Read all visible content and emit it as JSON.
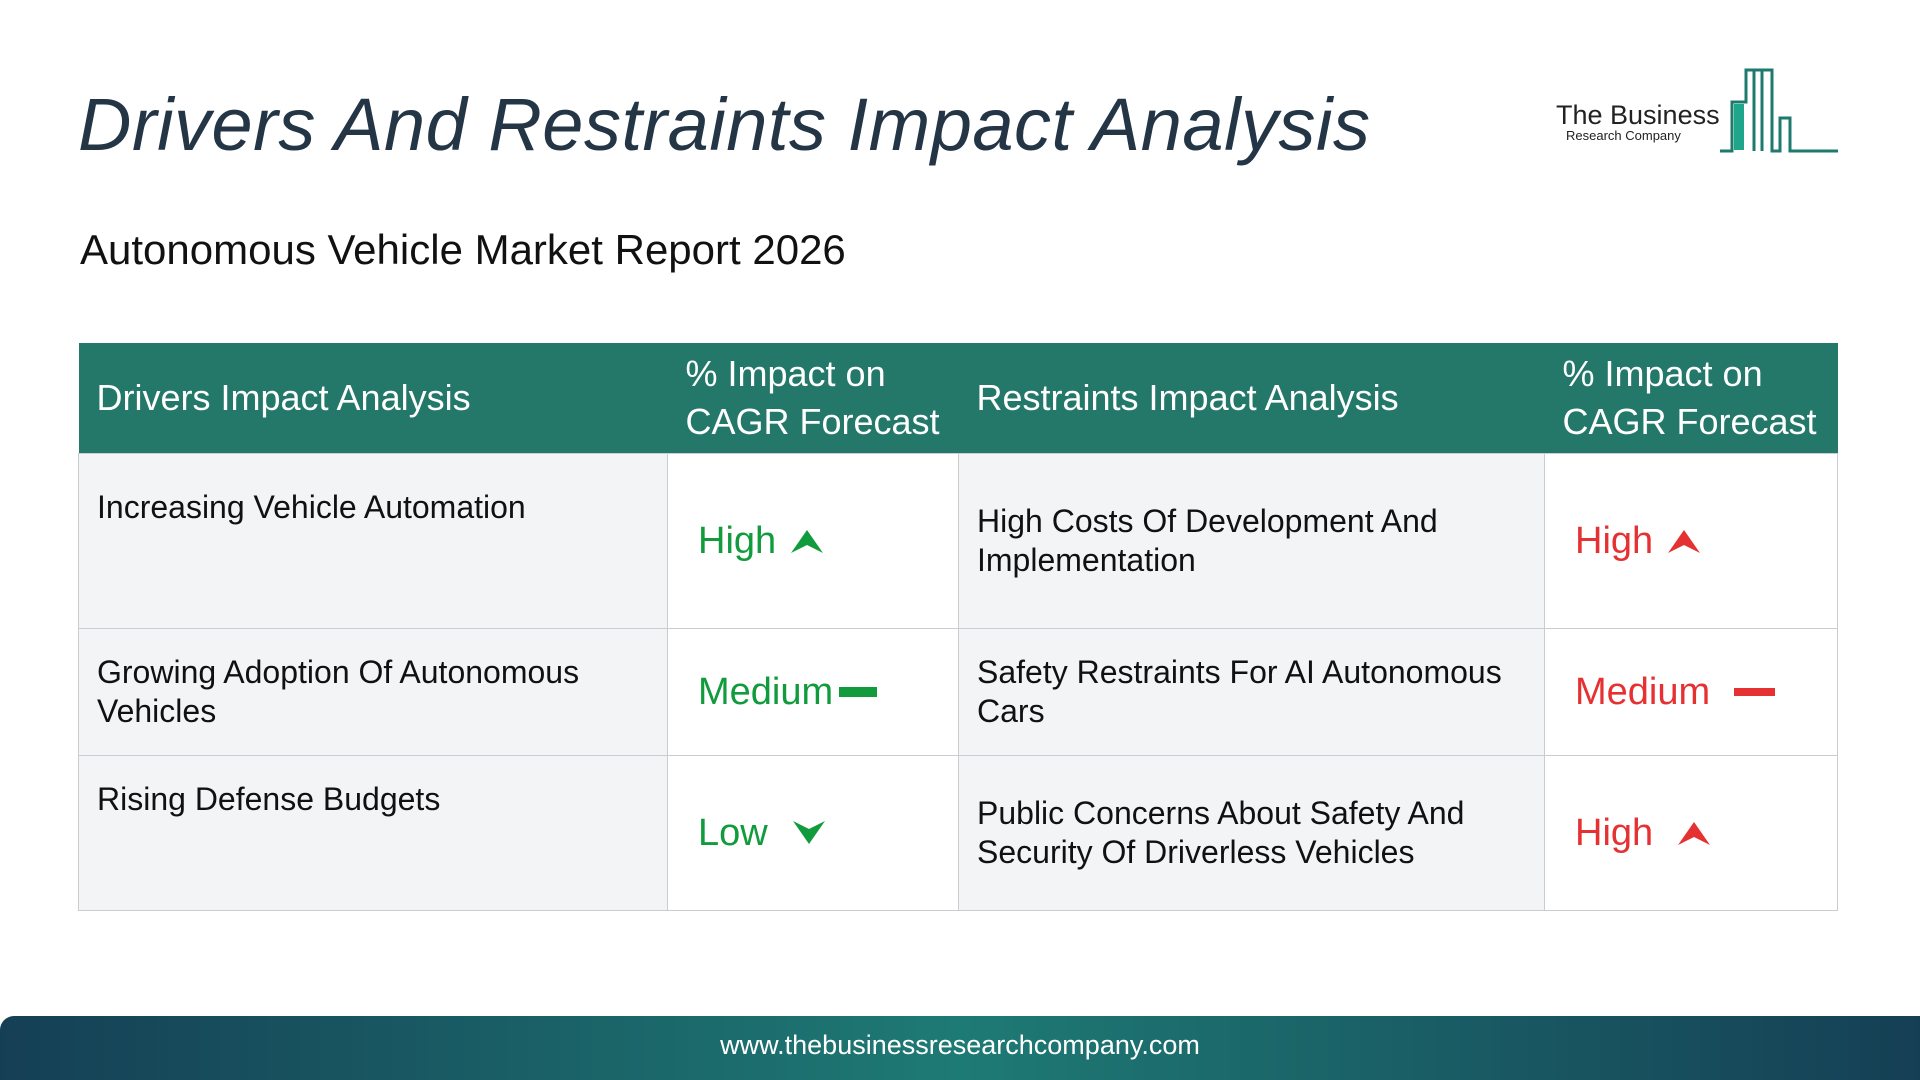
{
  "header": {
    "title": "Drivers And Restraints Impact Analysis",
    "subtitle": "Autonomous Vehicle Market Report 2026"
  },
  "logo": {
    "line1": "The Business",
    "line2": "Research Company",
    "icon": "bar-chart-building-icon",
    "color": "#1e7a6c"
  },
  "table": {
    "headers": {
      "drivers": "Drivers Impact Analysis",
      "drivers_impact": "% Impact on CAGR Forecast",
      "restraints": "Restraints Impact Analysis",
      "restraints_impact": "% Impact on CAGR Forecast"
    },
    "header_color": "#24786a",
    "rows": [
      {
        "driver": "Increasing Vehicle Automation",
        "driver_level": "High",
        "driver_icon": "arrow-up-icon",
        "restraint": "High Costs Of Development And Implementation",
        "restraint_level": "High",
        "restraint_icon": "arrow-up-icon"
      },
      {
        "driver": "Growing Adoption Of Autonomous Vehicles",
        "driver_level": "Medium",
        "driver_icon": "dash-icon",
        "restraint": "Safety Restraints For AI Autonomous Cars",
        "restraint_level": "Medium",
        "restraint_icon": "dash-icon"
      },
      {
        "driver": "Rising Defense Budgets",
        "driver_level": "Low",
        "driver_icon": "arrow-down-icon",
        "restraint": "Public Concerns About Safety And Security Of Driverless Vehicles",
        "restraint_level": "High",
        "restraint_icon": "arrow-up-icon"
      }
    ],
    "driver_color": "#119b3c",
    "restraint_color": "#e53131"
  },
  "footer": {
    "url": "www.thebusinessresearchcompany.com"
  }
}
